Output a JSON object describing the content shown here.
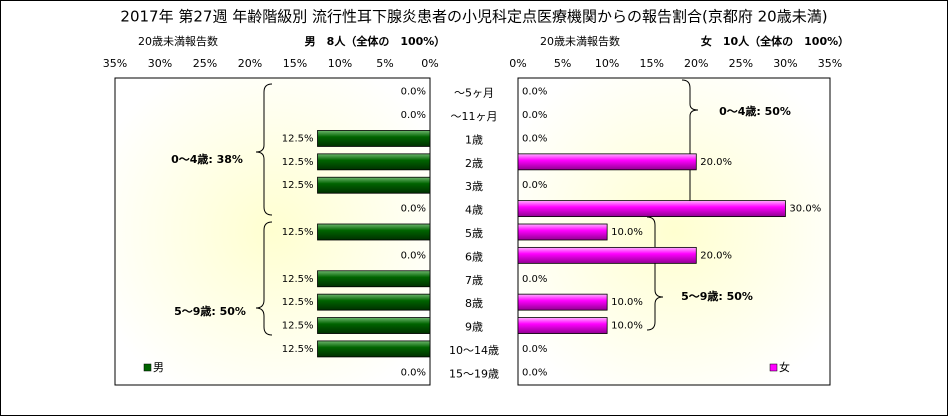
{
  "chart_data": [
    {
      "type": "hbar",
      "title": "2017年 第27週 年齢階級別 流行性耳下腺炎患者の小児科定点医療機関からの報告割合(京都府 20歳未満)",
      "subtitle": "20歳未満報告数",
      "header": "男　8人（全体の　100%）",
      "categories": [
        "～5ヶ月",
        "～11ヶ月",
        "1歳",
        "2歳",
        "3歳",
        "4歳",
        "5歳",
        "6歳",
        "7歳",
        "8歳",
        "9歳",
        "10～14歳",
        "15～19歳"
      ],
      "series": [
        {
          "name": "男",
          "color": "#006400",
          "values": [
            0,
            0,
            12.5,
            12.5,
            12.5,
            0,
            12.5,
            0,
            12.5,
            12.5,
            12.5,
            12.5,
            0
          ],
          "value_labels": [
            "0.0%",
            "0.0%",
            "12.5%",
            "12.5%",
            "12.5%",
            "0.0%",
            "12.5%",
            "0.0%",
            "12.5%",
            "12.5%",
            "12.5%",
            "12.5%",
            "0.0%"
          ]
        }
      ],
      "xlim": [
        35,
        0
      ],
      "xticks": [
        {
          "value": 35,
          "label": "35%"
        },
        {
          "value": 30,
          "label": "30%"
        },
        {
          "value": 25,
          "label": "25%"
        },
        {
          "value": 20,
          "label": "20%"
        },
        {
          "value": 15,
          "label": "15%"
        },
        {
          "value": 10,
          "label": "10%"
        },
        {
          "value": 5,
          "label": "5%"
        },
        {
          "value": 0,
          "label": "0%"
        }
      ],
      "annotations": [
        "0～4歳: 38%",
        "5～9歳: 50%"
      ]
    },
    {
      "type": "hbar",
      "subtitle": "20歳未満報告数",
      "header": "女　10人（全体の　100%）",
      "series": [
        {
          "name": "女",
          "color": "#ff00ff",
          "values": [
            0,
            0,
            0,
            20,
            0,
            30,
            10,
            20,
            0,
            10,
            10,
            0,
            0
          ],
          "value_labels": [
            "0.0%",
            "0.0%",
            "0.0%",
            "20.0%",
            "0.0%",
            "30.0%",
            "10.0%",
            "20.0%",
            "0.0%",
            "10.0%",
            "10.0%",
            "0.0%",
            "0.0%"
          ]
        }
      ],
      "xlim": [
        0,
        35
      ],
      "xticks": [
        {
          "value": 0,
          "label": "0%"
        },
        {
          "value": 5,
          "label": "5%"
        },
        {
          "value": 10,
          "label": "10%"
        },
        {
          "value": 15,
          "label": "15%"
        },
        {
          "value": 20,
          "label": "20%"
        },
        {
          "value": 25,
          "label": "25%"
        },
        {
          "value": 30,
          "label": "30%"
        },
        {
          "value": 35,
          "label": "35%"
        }
      ],
      "annotations": [
        "0～4歳: 50%",
        "5～9歳: 50%"
      ]
    }
  ]
}
